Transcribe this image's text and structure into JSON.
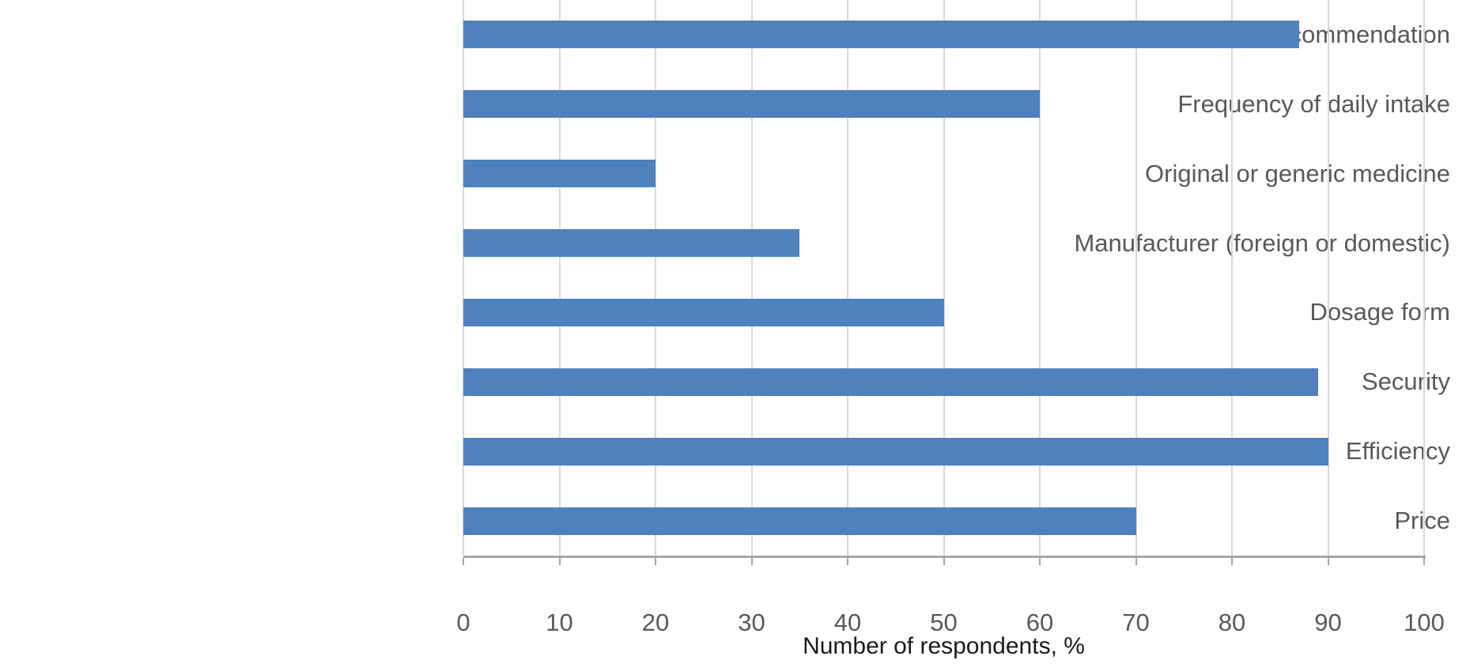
{
  "chart_data": {
    "type": "bar",
    "orientation": "horizontal",
    "title": "",
    "xlabel": "Number of respondents, %",
    "ylabel": "",
    "categories": [
      "Doctor's recommendation",
      "Frequency of daily intake",
      "Original or generic medicine",
      "Manufacturer (foreign or domestic)",
      "Dosage form",
      "Security",
      "Efficiency",
      "Price"
    ],
    "values": [
      87,
      60,
      20,
      35,
      50,
      89,
      90,
      70
    ],
    "xlim": [
      0,
      100
    ],
    "xticks": [
      0,
      10,
      20,
      30,
      40,
      50,
      60,
      70,
      80,
      90,
      100
    ],
    "grid": "vertical-gridlines-on",
    "legend": "none",
    "colors": {
      "bar": "#4F81BD",
      "gridline": "#D9D9D9",
      "axis_line": "#A6A6A6",
      "tick_label": "#595959",
      "category_label": "#595959",
      "axis_title": "#1A1A1A",
      "background": "#FFFFFF"
    }
  }
}
